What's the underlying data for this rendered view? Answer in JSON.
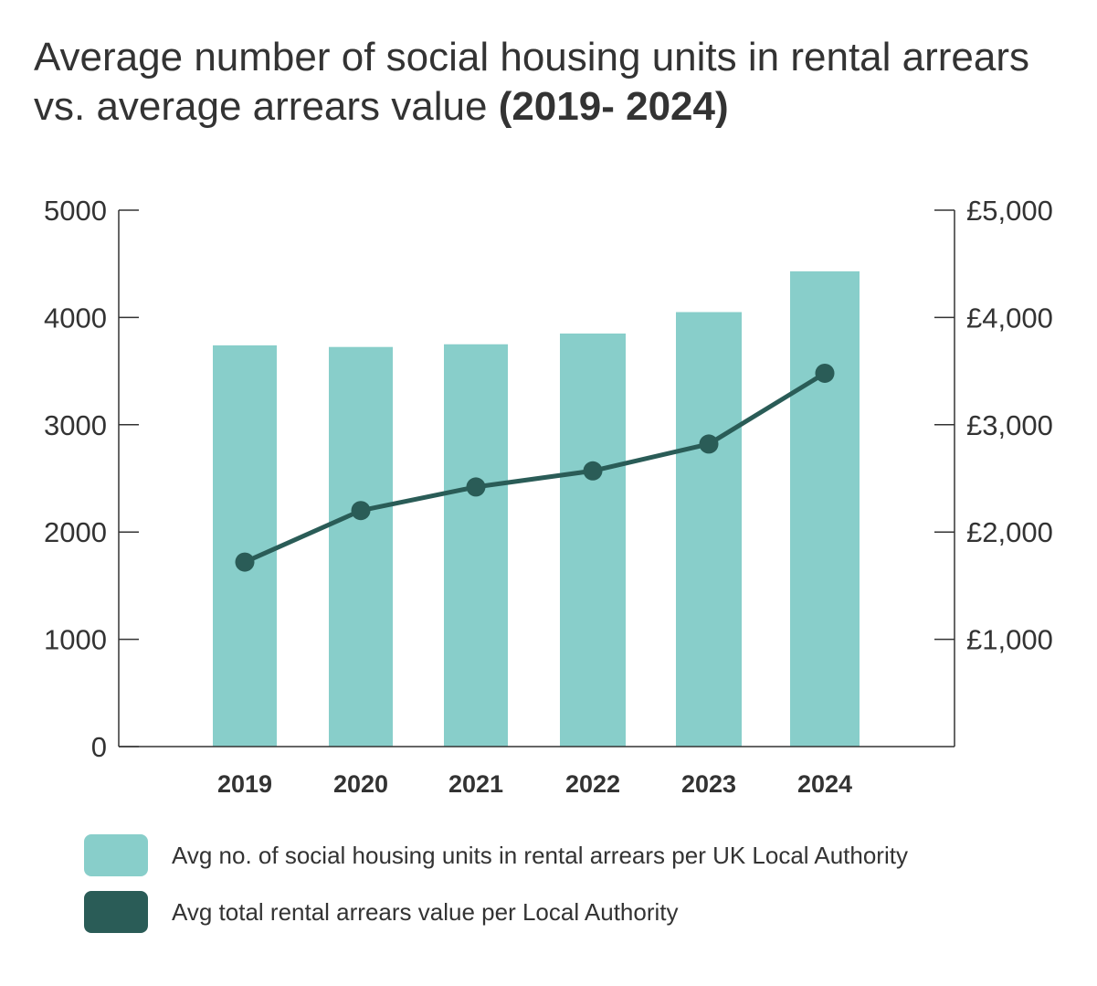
{
  "title": {
    "main": "Average number of social housing units in rental arrears vs. average arrears value ",
    "emphasis": "(2019- 2024)"
  },
  "colors": {
    "bar": "#88ceca",
    "line": "#2a5c57",
    "axis": "#333333",
    "text": "#333333"
  },
  "chart_data": {
    "type": "bar",
    "categories": [
      "2019",
      "2020",
      "2021",
      "2022",
      "2023",
      "2024"
    ],
    "series": [
      {
        "name": "Avg no. of social housing units in rental arrears per UK Local Authority",
        "type": "bar",
        "axis": "left",
        "values": [
          3740,
          3725,
          3750,
          3850,
          4050,
          4430
        ]
      },
      {
        "name": "Avg total rental arrears value per Local Authority",
        "type": "line",
        "axis": "right",
        "values": [
          1720,
          2200,
          2420,
          2570,
          2820,
          3480
        ]
      }
    ],
    "y_left": {
      "range": [
        0,
        5000
      ],
      "ticks": [
        "0",
        "1000",
        "2000",
        "3000",
        "4000",
        "5000"
      ]
    },
    "y_right": {
      "range": [
        0,
        5000
      ],
      "ticks": [
        "£1,000",
        "£2,000",
        "£3,000",
        "£4,000",
        "£5,000"
      ]
    },
    "grid": false,
    "legend_position": "bottom-left"
  }
}
